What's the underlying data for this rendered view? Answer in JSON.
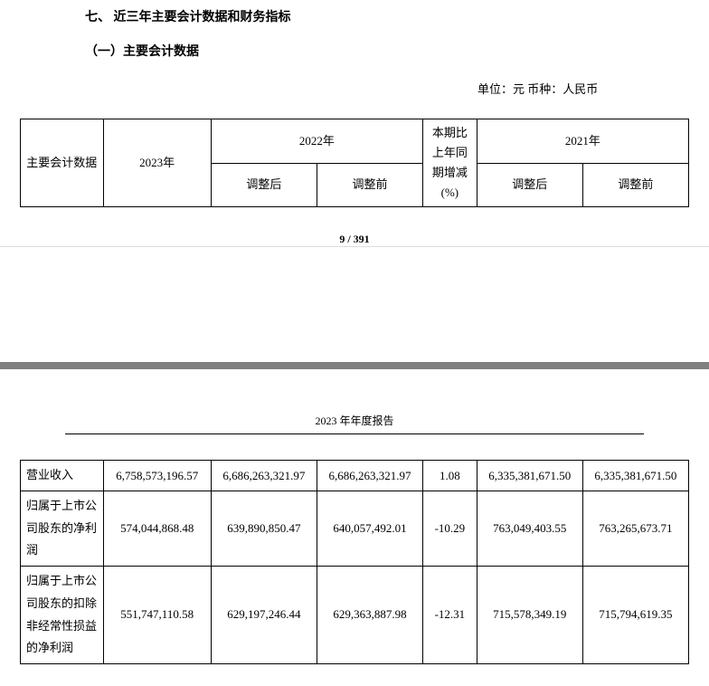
{
  "headings": {
    "section": "七、 近三年主要会计数据和财务指标",
    "subsection": "（一）主要会计数据"
  },
  "unit_line": "单位：元    币种：人民币",
  "header_table": {
    "col1": "主要会计数据",
    "col2": "2023年",
    "col3": "2022年",
    "col3a": "调整后",
    "col3b": "调整前",
    "col4": "本期比上年同期增减(%)",
    "col5": "2021年",
    "col5a": "调整后",
    "col5b": "调整前"
  },
  "page_footer": "9 / 391",
  "report_title": "2023 年年度报告",
  "data_table": {
    "rows": [
      {
        "label": "营业收入",
        "y2023": "6,758,573,196.57",
        "y2022_adj": "6,686,263,321.97",
        "y2022_pre": "6,686,263,321.97",
        "change": "1.08",
        "y2021_adj": "6,335,381,671.50",
        "y2021_pre": "6,335,381,671.50"
      },
      {
        "label": "归属于上市公司股东的净利润",
        "y2023": "574,044,868.48",
        "y2022_adj": "639,890,850.47",
        "y2022_pre": "640,057,492.01",
        "change": "-10.29",
        "y2021_adj": "763,049,403.55",
        "y2021_pre": "763,265,673.71"
      },
      {
        "label": "归属于上市公司股东的扣除非经常性损益的净利润",
        "y2023": "551,747,110.58",
        "y2022_adj": "629,197,246.44",
        "y2022_pre": "629,363,887.98",
        "change": "-12.31",
        "y2021_adj": "715,578,349.19",
        "y2021_pre": "715,794,619.35"
      }
    ]
  }
}
